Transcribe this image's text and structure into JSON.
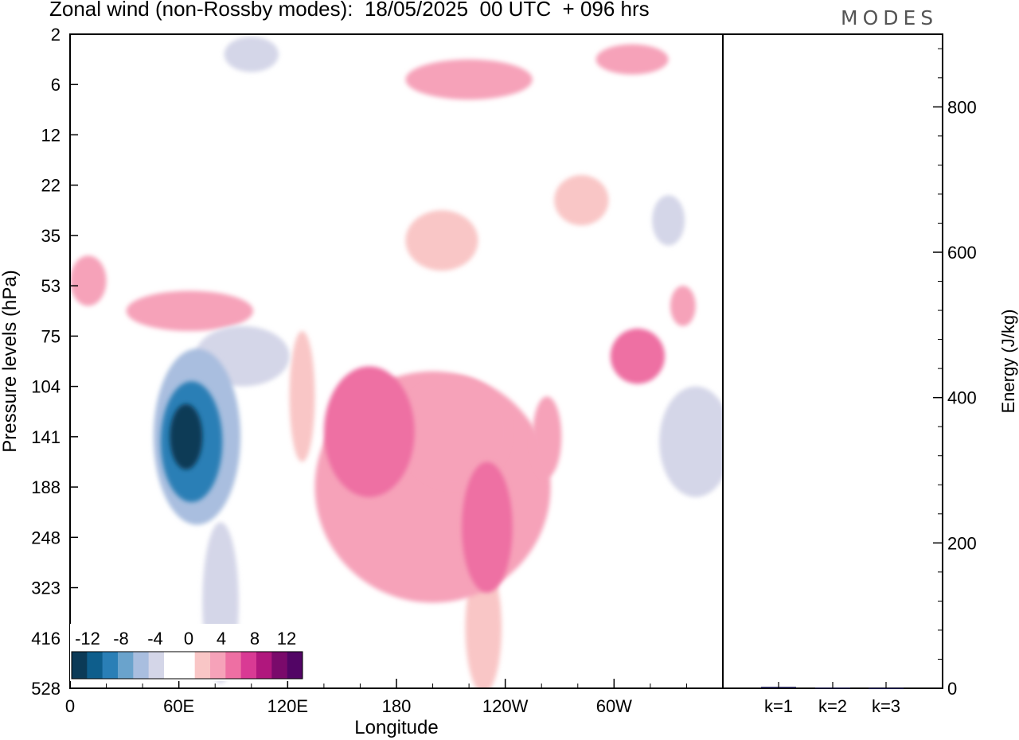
{
  "header": {
    "title": "Zonal wind (non-Rossby modes):  18/05/2025  00 UTC  + 096 hrs",
    "logo": "MODES"
  },
  "chart_data": [
    {
      "type": "heatmap",
      "title": "Zonal wind (non-Rossby modes):  18/05/2025  00 UTC  + 096 hrs",
      "xlabel": "Longitude",
      "ylabel": "Pressure levels (hPa)",
      "x_ticks": [
        "0",
        "60E",
        "120E",
        "180",
        "120W",
        "60W"
      ],
      "x_tick_values": [
        0,
        60,
        120,
        180,
        240,
        300
      ],
      "xlim": [
        0,
        360
      ],
      "y_ticks": [
        "2",
        "6",
        "12",
        "22",
        "35",
        "53",
        "75",
        "104",
        "141",
        "188",
        "248",
        "323",
        "416",
        "528"
      ],
      "colorbar": {
        "labels": [
          "-12",
          "-8",
          "-4",
          "0",
          "4",
          "8",
          "12"
        ],
        "colors": [
          "#0b3a57",
          "#0e5e8c",
          "#2a7fb6",
          "#6aa3cc",
          "#a9bedf",
          "#d4d6e8",
          "#ffffff",
          "#ffffff",
          "#f9c6c6",
          "#f6a2b9",
          "#ee6fa3",
          "#d93a94",
          "#b0177d",
          "#7a0a6b",
          "#520565"
        ]
      },
      "blobs": [
        {
          "lon": 64,
          "lev": 8.0,
          "w": 18,
          "h": 1.3,
          "value": -14
        },
        {
          "lon": 67,
          "lev": 8.1,
          "w": 34,
          "h": 2.4,
          "value": -10
        },
        {
          "lon": 70,
          "lev": 8.0,
          "w": 48,
          "h": 3.5,
          "value": -6
        },
        {
          "lon": 95,
          "lev": 6.4,
          "w": 52,
          "h": 1.2,
          "value": -5
        },
        {
          "lon": 83,
          "lev": 11.3,
          "w": 20,
          "h": 3.2,
          "value": -5
        },
        {
          "lon": 50,
          "lev": 6.9,
          "w": 22,
          "h": 1.6,
          "value": -3
        },
        {
          "lon": 12,
          "lev": 8.3,
          "w": 30,
          "h": 2.8,
          "value": -3
        },
        {
          "lon": 100,
          "lev": 0.4,
          "w": 30,
          "h": 0.7,
          "value": -4
        },
        {
          "lon": 120,
          "lev": 1.1,
          "w": 80,
          "h": 0.9,
          "value": -2
        },
        {
          "lon": 135,
          "lev": 6.3,
          "w": 28,
          "h": 0.8,
          "value": -2
        },
        {
          "lon": 330,
          "lev": 3.7,
          "w": 18,
          "h": 1.0,
          "value": -4
        },
        {
          "lon": 345,
          "lev": 8.1,
          "w": 40,
          "h": 2.2,
          "value": -5
        },
        {
          "lon": 320,
          "lev": 9.6,
          "w": 30,
          "h": 2.2,
          "value": -3
        },
        {
          "lon": 290,
          "lev": 10.2,
          "w": 12,
          "h": 3.0,
          "value": -2
        },
        {
          "lon": 335,
          "lev": 1.2,
          "w": 60,
          "h": 0.9,
          "value": -3
        },
        {
          "lon": 165,
          "lev": 7.9,
          "w": 50,
          "h": 2.6,
          "value": 6
        },
        {
          "lon": 212,
          "lev": 7.9,
          "w": 60,
          "h": 2.2,
          "value": 4
        },
        {
          "lon": 230,
          "lev": 9.8,
          "w": 28,
          "h": 2.6,
          "value": 6
        },
        {
          "lon": 200,
          "lev": 9.0,
          "w": 130,
          "h": 4.6,
          "value": 3
        },
        {
          "lon": 228,
          "lev": 11.8,
          "w": 20,
          "h": 2.6,
          "value": 2
        },
        {
          "lon": 263,
          "lev": 8.0,
          "w": 16,
          "h": 1.6,
          "value": 4
        },
        {
          "lon": 313,
          "lev": 6.4,
          "w": 30,
          "h": 1.1,
          "value": 5
        },
        {
          "lon": 338,
          "lev": 5.4,
          "w": 14,
          "h": 0.8,
          "value": 4
        },
        {
          "lon": 220,
          "lev": 0.9,
          "w": 70,
          "h": 0.8,
          "value": 4
        },
        {
          "lon": 310,
          "lev": 0.5,
          "w": 40,
          "h": 0.6,
          "value": 3
        },
        {
          "lon": 66,
          "lev": 5.5,
          "w": 70,
          "h": 0.8,
          "value": 4
        },
        {
          "lon": 10,
          "lev": 4.9,
          "w": 20,
          "h": 1.0,
          "value": 3
        },
        {
          "lon": 205,
          "lev": 4.1,
          "w": 40,
          "h": 1.2,
          "value": 2
        },
        {
          "lon": 282,
          "lev": 3.3,
          "w": 30,
          "h": 1.0,
          "value": 2
        },
        {
          "lon": 128,
          "lev": 7.2,
          "w": 14,
          "h": 2.6,
          "value": 2
        }
      ]
    },
    {
      "type": "bar",
      "ylabel": "Energy (J/kg)",
      "categories": [
        "k=1",
        "k=2",
        "k=3"
      ],
      "values": [
        2,
        1,
        0.5
      ],
      "ylim": [
        0,
        900
      ],
      "y_ticks": [
        0,
        200,
        400,
        600,
        800
      ]
    }
  ]
}
